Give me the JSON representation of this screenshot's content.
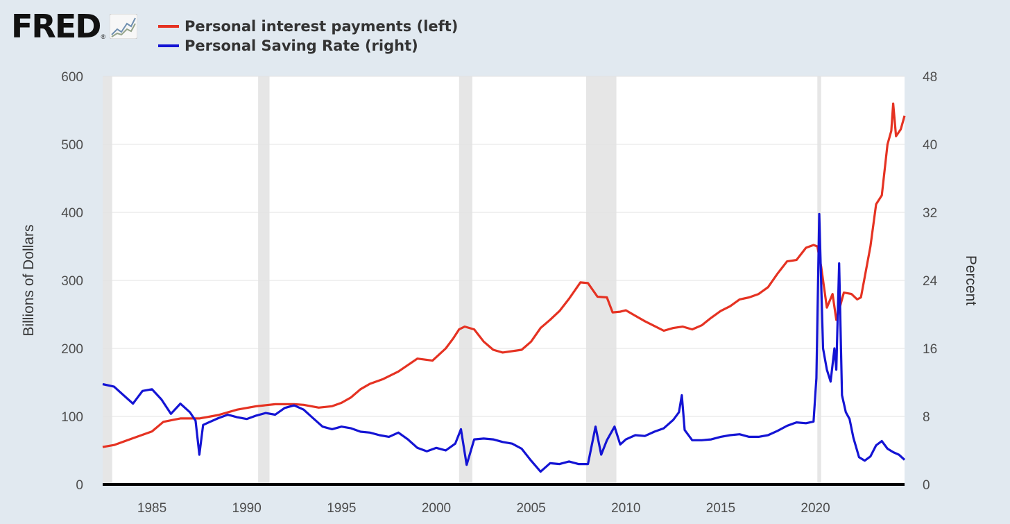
{
  "logo": {
    "text": "FRED",
    "reg": "®"
  },
  "colors": {
    "interest": "#e53222",
    "saving": "#1414d4",
    "recession": "#e6e6e6",
    "background": "#e1e9f0"
  },
  "chart_data": {
    "type": "line",
    "title": "",
    "xlabel": "",
    "ylabel": "Billions of Dollars",
    "y2label": "Percent",
    "xlim": [
      1982.4,
      2024.7
    ],
    "ylim": [
      0,
      600
    ],
    "y2lim": [
      0,
      48
    ],
    "grid": true,
    "legend_position": "top-left",
    "x_ticks": [
      "1985",
      "1990",
      "1995",
      "2000",
      "2005",
      "2010",
      "2015",
      "2020"
    ],
    "y_ticks": [
      "0",
      "100",
      "200",
      "300",
      "400",
      "500",
      "600"
    ],
    "y2_ticks": [
      "0",
      "8",
      "16",
      "24",
      "32",
      "40",
      "48"
    ],
    "recessions": [
      [
        1982.4,
        1982.9
      ],
      [
        1990.6,
        1991.2
      ],
      [
        2001.2,
        2001.9
      ],
      [
        2007.9,
        2009.5
      ],
      [
        2020.1,
        2020.3
      ]
    ],
    "series": [
      {
        "name": "Personal interest payments (left)",
        "axis": "left",
        "color": "#e53222",
        "points": [
          [
            1982.4,
            55
          ],
          [
            1983,
            58
          ],
          [
            1984,
            68
          ],
          [
            1985,
            78
          ],
          [
            1985.6,
            92
          ],
          [
            1986.5,
            97
          ],
          [
            1987.5,
            97
          ],
          [
            1988.5,
            102
          ],
          [
            1989.5,
            110
          ],
          [
            1990.5,
            115
          ],
          [
            1991.5,
            118
          ],
          [
            1992.5,
            118
          ],
          [
            1993,
            117
          ],
          [
            1993.8,
            113
          ],
          [
            1994.5,
            115
          ],
          [
            1995,
            120
          ],
          [
            1995.5,
            128
          ],
          [
            1996,
            140
          ],
          [
            1996.5,
            148
          ],
          [
            1997.2,
            155
          ],
          [
            1998,
            166
          ],
          [
            1999,
            185
          ],
          [
            1999.8,
            182
          ],
          [
            2000.5,
            200
          ],
          [
            2000.9,
            215
          ],
          [
            2001.2,
            228
          ],
          [
            2001.5,
            232
          ],
          [
            2002,
            228
          ],
          [
            2002.5,
            210
          ],
          [
            2003,
            198
          ],
          [
            2003.5,
            194
          ],
          [
            2004.5,
            198
          ],
          [
            2005,
            210
          ],
          [
            2005.5,
            230
          ],
          [
            2006,
            242
          ],
          [
            2006.5,
            255
          ],
          [
            2007,
            273
          ],
          [
            2007.6,
            297
          ],
          [
            2008,
            296
          ],
          [
            2008.5,
            276
          ],
          [
            2009,
            275
          ],
          [
            2009.3,
            253
          ],
          [
            2009.7,
            254
          ],
          [
            2010,
            256
          ],
          [
            2010.5,
            248
          ],
          [
            2011,
            240
          ],
          [
            2011.5,
            233
          ],
          [
            2012,
            226
          ],
          [
            2012.5,
            230
          ],
          [
            2013,
            232
          ],
          [
            2013.5,
            228
          ],
          [
            2014,
            234
          ],
          [
            2014.5,
            245
          ],
          [
            2015,
            255
          ],
          [
            2015.5,
            262
          ],
          [
            2016,
            272
          ],
          [
            2016.5,
            275
          ],
          [
            2017,
            280
          ],
          [
            2017.5,
            290
          ],
          [
            2018,
            310
          ],
          [
            2018.5,
            328
          ],
          [
            2019,
            330
          ],
          [
            2019.5,
            348
          ],
          [
            2019.9,
            352
          ],
          [
            2020.1,
            350
          ],
          [
            2020.3,
            320
          ],
          [
            2020.6,
            260
          ],
          [
            2020.9,
            280
          ],
          [
            2021.1,
            242
          ],
          [
            2021.5,
            282
          ],
          [
            2021.9,
            280
          ],
          [
            2022.2,
            272
          ],
          [
            2022.4,
            275
          ],
          [
            2022.6,
            305
          ],
          [
            2022.9,
            350
          ],
          [
            2023.2,
            412
          ],
          [
            2023.5,
            425
          ],
          [
            2023.8,
            500
          ],
          [
            2024.0,
            520
          ],
          [
            2024.1,
            560
          ],
          [
            2024.25,
            512
          ],
          [
            2024.5,
            522
          ],
          [
            2024.7,
            542
          ]
        ]
      },
      {
        "name": "Personal Saving Rate (right)",
        "axis": "right",
        "color": "#1414d4",
        "points": [
          [
            1982.4,
            11.8
          ],
          [
            1983,
            11.5
          ],
          [
            1983.5,
            10.5
          ],
          [
            1984,
            9.5
          ],
          [
            1984.5,
            11
          ],
          [
            1985,
            11.2
          ],
          [
            1985.5,
            10
          ],
          [
            1986,
            8.3
          ],
          [
            1986.5,
            9.5
          ],
          [
            1987,
            8.5
          ],
          [
            1987.3,
            7.5
          ],
          [
            1987.5,
            3.5
          ],
          [
            1987.7,
            7
          ],
          [
            1988,
            7.3
          ],
          [
            1988.5,
            7.8
          ],
          [
            1989,
            8.2
          ],
          [
            1989.5,
            7.9
          ],
          [
            1990,
            7.7
          ],
          [
            1990.5,
            8.1
          ],
          [
            1991,
            8.4
          ],
          [
            1991.5,
            8.2
          ],
          [
            1992,
            9
          ],
          [
            1992.5,
            9.3
          ],
          [
            1993,
            8.8
          ],
          [
            1993.5,
            7.8
          ],
          [
            1994,
            6.8
          ],
          [
            1994.5,
            6.5
          ],
          [
            1995,
            6.8
          ],
          [
            1995.5,
            6.6
          ],
          [
            1996,
            6.2
          ],
          [
            1996.5,
            6.1
          ],
          [
            1997,
            5.8
          ],
          [
            1997.5,
            5.6
          ],
          [
            1998,
            6.1
          ],
          [
            1998.5,
            5.3
          ],
          [
            1999,
            4.3
          ],
          [
            1999.5,
            3.9
          ],
          [
            2000,
            4.3
          ],
          [
            2000.5,
            4
          ],
          [
            2001,
            4.8
          ],
          [
            2001.3,
            6.5
          ],
          [
            2001.6,
            2.3
          ],
          [
            2002,
            5.3
          ],
          [
            2002.5,
            5.4
          ],
          [
            2003,
            5.3
          ],
          [
            2003.5,
            5
          ],
          [
            2004,
            4.8
          ],
          [
            2004.5,
            4.2
          ],
          [
            2005,
            2.8
          ],
          [
            2005.5,
            1.5
          ],
          [
            2006,
            2.5
          ],
          [
            2006.5,
            2.4
          ],
          [
            2007,
            2.7
          ],
          [
            2007.5,
            2.4
          ],
          [
            2008,
            2.4
          ],
          [
            2008.4,
            6.8
          ],
          [
            2008.7,
            3.5
          ],
          [
            2009,
            5.2
          ],
          [
            2009.4,
            6.8
          ],
          [
            2009.7,
            4.7
          ],
          [
            2010,
            5.3
          ],
          [
            2010.5,
            5.8
          ],
          [
            2011,
            5.7
          ],
          [
            2011.5,
            6.2
          ],
          [
            2012,
            6.6
          ],
          [
            2012.5,
            7.6
          ],
          [
            2012.8,
            8.5
          ],
          [
            2012.95,
            10.5
          ],
          [
            2013.1,
            6.4
          ],
          [
            2013.5,
            5.2
          ],
          [
            2014,
            5.2
          ],
          [
            2014.5,
            5.3
          ],
          [
            2015,
            5.6
          ],
          [
            2015.5,
            5.8
          ],
          [
            2016,
            5.9
          ],
          [
            2016.5,
            5.6
          ],
          [
            2017,
            5.6
          ],
          [
            2017.5,
            5.8
          ],
          [
            2018,
            6.3
          ],
          [
            2018.5,
            6.9
          ],
          [
            2019,
            7.3
          ],
          [
            2019.5,
            7.2
          ],
          [
            2019.9,
            7.4
          ],
          [
            2020.05,
            12.5
          ],
          [
            2020.2,
            31.8
          ],
          [
            2020.4,
            16
          ],
          [
            2020.6,
            13.5
          ],
          [
            2020.8,
            12.1
          ],
          [
            2021.0,
            16
          ],
          [
            2021.1,
            13.5
          ],
          [
            2021.25,
            26
          ],
          [
            2021.4,
            10.5
          ],
          [
            2021.6,
            8.5
          ],
          [
            2021.8,
            7.7
          ],
          [
            2022,
            5.5
          ],
          [
            2022.3,
            3.2
          ],
          [
            2022.6,
            2.8
          ],
          [
            2022.9,
            3.3
          ],
          [
            2023.2,
            4.6
          ],
          [
            2023.5,
            5.1
          ],
          [
            2023.8,
            4.2
          ],
          [
            2024.1,
            3.8
          ],
          [
            2024.4,
            3.5
          ],
          [
            2024.7,
            2.9
          ]
        ]
      }
    ]
  }
}
